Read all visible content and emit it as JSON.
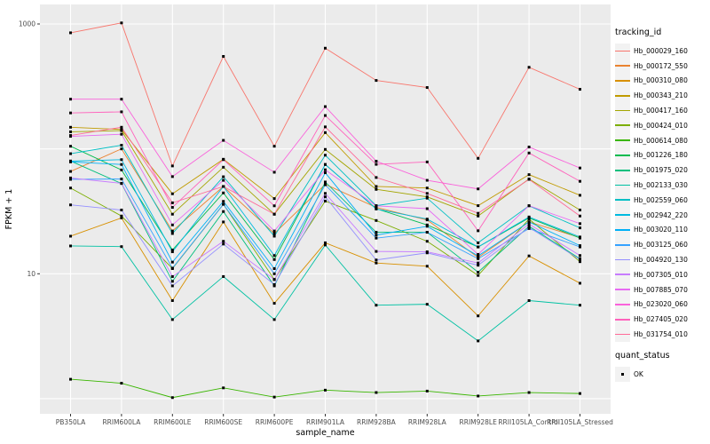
{
  "figure": {
    "background": "#FFFFFF",
    "panel_background": "#EBEBEB",
    "gridline_color": "#FFFFFF",
    "tick_color": "#333333",
    "tick_label_color": "#4D4D4D",
    "axis_title_color": "#000000",
    "point_color": "#000000"
  },
  "axes": {
    "x_title": "sample_name",
    "y_title": "FPKM + 1",
    "y_scale": "log10",
    "y_tick_labels": [
      "1000",
      "10"
    ],
    "y_tick_values": [
      1000,
      10
    ],
    "y_gridline_values": [
      1,
      10,
      100,
      1000
    ]
  },
  "legend": {
    "tracking_title": "tracking_id",
    "quant_title": "quant_status",
    "quant_items": [
      {
        "label": "OK",
        "shape": "filled-square"
      }
    ]
  },
  "chart_data": {
    "type": "line",
    "title": "",
    "xlabel": "sample_name",
    "ylabel": "FPKM + 1",
    "y_scale": "log10",
    "ylim": [
      0.76,
      1430
    ],
    "grid": true,
    "legend_position": "right",
    "point_shape": "filled-square",
    "point_color": "#000000",
    "categories": [
      "PB350LA",
      "RRIM600LA",
      "RRIM600LE",
      "RRIM600SE",
      "RRIM600PE",
      "RRIM901LA",
      "RRIM928BA",
      "RRIM928LA",
      "RRIM928LE",
      "RRII105LA_Control",
      "RRII105LA_Stressed"
    ],
    "series": [
      {
        "name": "Hb_000029_160",
        "color": "#F8766D",
        "values": [
          850,
          1020,
          73,
          550,
          105,
          640,
          353,
          310,
          84,
          450,
          300
        ]
      },
      {
        "name": "Hb_000172_550",
        "color": "#EA8331",
        "values": [
          66,
          100,
          22,
          50,
          21,
          52,
          34,
          27,
          13.5,
          26,
          19.5
        ]
      },
      {
        "name": "Hb_000310_080",
        "color": "#D89000",
        "values": [
          20,
          28,
          6.1,
          26,
          5.8,
          17.7,
          12.2,
          11.5,
          4.6,
          13.9,
          8.4
        ]
      },
      {
        "name": "Hb_000343_210",
        "color": "#C09B00",
        "values": [
          149,
          143,
          43.7,
          82.6,
          40,
          135,
          50,
          48.6,
          35.1,
          62.2,
          42.5
        ]
      },
      {
        "name": "Hb_000417_160",
        "color": "#A3A500",
        "values": [
          137,
          140,
          30,
          71.3,
          30,
          99,
          47.4,
          41.3,
          29,
          57.4,
          32.4
        ]
      },
      {
        "name": "Hb_000424_010",
        "color": "#7CAE00",
        "values": [
          48.6,
          29,
          11,
          36,
          9,
          38.2,
          26.7,
          18.2,
          9.7,
          27.4,
          12.5
        ]
      },
      {
        "name": "Hb_000614_080",
        "color": "#39B600",
        "values": [
          1.43,
          1.33,
          1.02,
          1.22,
          1.03,
          1.17,
          1.12,
          1.15,
          1.05,
          1.12,
          1.1
        ]
      },
      {
        "name": "Hb_001226_180",
        "color": "#00BB4E",
        "values": [
          105,
          67.8,
          15.5,
          44.4,
          13,
          75,
          33.2,
          24.6,
          16.4,
          28,
          19.3
        ]
      },
      {
        "name": "Hb_001975_020",
        "color": "#00BF7D",
        "values": [
          80,
          52.8,
          8.7,
          31.5,
          8,
          54.3,
          21.5,
          21.5,
          10.3,
          24,
          13.2
        ]
      },
      {
        "name": "Hb_002133_030",
        "color": "#00C1A3",
        "values": [
          16.7,
          16.5,
          4.3,
          9.5,
          4.3,
          17,
          5.6,
          5.7,
          2.9,
          6.1,
          5.6
        ]
      },
      {
        "name": "Hb_002559_060",
        "color": "#00BFC4",
        "values": [
          91.5,
          107,
          21,
          59.8,
          20,
          89,
          35.1,
          40.3,
          17.7,
          35,
          23.3
        ]
      },
      {
        "name": "Hb_002942_220",
        "color": "#00BAE0",
        "values": [
          79.7,
          82,
          15,
          50,
          14,
          75,
          33,
          27.4,
          16.4,
          28.5,
          19.7
        ]
      },
      {
        "name": "Hb_003020_110",
        "color": "#00B0F6",
        "values": [
          78.6,
          75,
          12.4,
          38,
          11,
          64.4,
          20.4,
          24,
          13.9,
          26,
          16.8
        ]
      },
      {
        "name": "Hb_003125_060",
        "color": "#35A2FF",
        "values": [
          57,
          57.4,
          11.1,
          36,
          10,
          51.6,
          19.3,
          21.5,
          13.2,
          23,
          16.4
        ]
      },
      {
        "name": "Hb_004920_130",
        "color": "#9590FF",
        "values": [
          35.6,
          32.4,
          8,
          17.3,
          8.2,
          41.3,
          12.9,
          14.7,
          11.7,
          23.5,
          13
        ]
      },
      {
        "name": "Hb_007305_010",
        "color": "#C77CFF",
        "values": [
          58.5,
          53,
          9.5,
          18.2,
          9,
          44,
          15.1,
          15,
          12.2,
          25,
          14
        ]
      },
      {
        "name": "Hb_007885_070",
        "color": "#E76BF3",
        "values": [
          126,
          131,
          24.6,
          56,
          22,
          68,
          35,
          33.2,
          14.3,
          35.1,
          25.2
        ]
      },
      {
        "name": "Hb_023020_060",
        "color": "#FA62DB",
        "values": [
          250,
          250,
          60,
          117,
          65,
          218,
          79.7,
          56,
          47.8,
          103.5,
          70.3
        ]
      },
      {
        "name": "Hb_027405_020",
        "color": "#FF62BC",
        "values": [
          194,
          198,
          34,
          82,
          35,
          185,
          75.2,
          78.6,
          22.1,
          92.7,
          55
        ]
      },
      {
        "name": "Hb_031754_010",
        "color": "#FF6A98",
        "values": [
          128,
          149,
          37,
          50,
          30,
          150,
          59,
          44,
          30.5,
          57,
          29
        ]
      }
    ]
  }
}
